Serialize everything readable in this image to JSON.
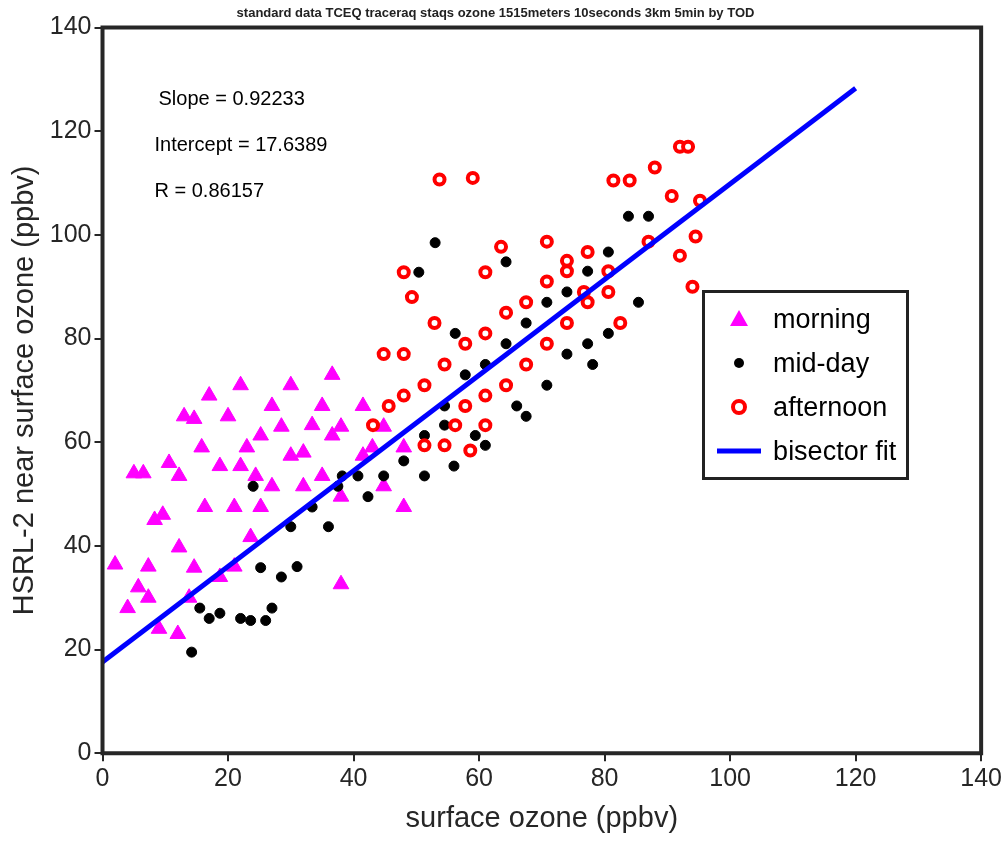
{
  "chart_data": {
    "type": "scatter",
    "title": "standard data TCEQ traceraq staqs ozone 1515meters 10seconds 3km 5min by TOD",
    "xlabel": "surface ozone (ppbv)",
    "ylabel": "HSRL-2 near surface ozone (ppbv)",
    "xlim": [
      0,
      140
    ],
    "ylim": [
      0,
      140
    ],
    "xticks": [
      0,
      20,
      40,
      60,
      80,
      100,
      120,
      140
    ],
    "yticks": [
      0,
      20,
      40,
      60,
      80,
      100,
      120,
      140
    ],
    "legend": "right",
    "annotations": [
      "Slope = 0.92233",
      "Intercept = 17.6389",
      "R = 0.86157"
    ],
    "series": [
      {
        "name": "morning",
        "color": "#ff00ff",
        "marker": "triangle",
        "x": [
          2,
          5,
          6.5,
          5.7,
          7.3,
          8.3,
          9.6,
          10.6,
          12.2,
          13,
          14.6,
          15.8,
          17,
          20,
          22,
          23,
          24.4,
          27,
          28.5,
          30,
          32,
          35,
          36.6,
          38,
          41.5,
          43,
          44.8,
          48,
          48,
          38,
          4,
          9,
          12,
          13.8,
          18.7,
          21,
          23.6,
          25.2,
          32,
          35,
          38,
          41.5,
          44.8,
          21,
          27,
          16.3,
          12.2,
          7.3,
          14.6,
          22,
          30,
          36.6,
          18.7,
          25.2,
          33.4
        ],
        "values": [
          36.4,
          54,
          54,
          32,
          36,
          45,
          46,
          56,
          53.5,
          65,
          64.5,
          59,
          69,
          65,
          71,
          59,
          53.5,
          67,
          63,
          71,
          58,
          67,
          73,
          63,
          67,
          59,
          51.5,
          47.5,
          59,
          32.6,
          28,
          24,
          23,
          30,
          34,
          36,
          41.7,
          47.5,
          51.5,
          53.5,
          49.5,
          57.4,
          63,
          47.5,
          51.5,
          47.5,
          39.7,
          30,
          35.8,
          55.4,
          57.4,
          61.3,
          55.4,
          61.3,
          63.3
        ]
      },
      {
        "name": "mid-day",
        "color": "#000000",
        "marker": "circle",
        "x": [
          14.2,
          15.5,
          17,
          18.7,
          22,
          23.6,
          26,
          27,
          28.5,
          31,
          30,
          25.2,
          24,
          33.4,
          36,
          37.5,
          38.2,
          40.7,
          42.3,
          44.8,
          48,
          51.3,
          54.5,
          57.8,
          61,
          64.3,
          67.5,
          70.8,
          74,
          77.3,
          80.6,
          83.8,
          87,
          53,
          50.4,
          56.2,
          64.3,
          61,
          56,
          54.5,
          66,
          70.8,
          74,
          77.3,
          85.4,
          80.6,
          78.1,
          67.5,
          59.4,
          51.3
        ],
        "values": [
          19.5,
          28,
          26,
          27,
          26,
          25.6,
          25.6,
          28,
          34,
          36,
          43.7,
          35.8,
          51.5,
          47.5,
          43.7,
          51.5,
          53.5,
          53.5,
          49.5,
          53.5,
          56.4,
          61.3,
          67,
          73,
          75,
          79,
          83,
          87,
          89,
          93,
          96.7,
          103.6,
          103.6,
          98.5,
          92.8,
          81,
          94.8,
          59.4,
          55.4,
          63.3,
          67,
          71,
          77,
          79,
          87,
          81,
          75,
          65,
          61.3,
          53.5
        ]
      },
      {
        "name": "afternoon",
        "color": "#ff0000",
        "marker": "circle",
        "x": [
          59,
          53.7,
          92,
          93.3,
          88,
          81.4,
          84,
          92,
          94.5,
          90.7,
          95.2,
          94,
          82.5,
          76.7,
          74,
          70.8,
          63.5,
          61,
          48,
          49.3,
          48,
          44.8,
          45.6,
          43.1,
          48,
          51.3,
          54.5,
          57.8,
          61,
          64.3,
          67.5,
          70.8,
          74,
          77.3,
          56.2,
          57.8,
          61,
          64.3,
          67.5,
          70.8,
          74,
          77.3,
          80.6,
          52.9,
          51.3,
          54.5,
          61,
          80.6,
          87,
          58.6
        ],
        "values": [
          111,
          110.7,
          117,
          117,
          113,
          110.5,
          110.5,
          96,
          99.7,
          107.5,
          106.6,
          90,
          83,
          89,
          93,
          98.7,
          97.7,
          92.8,
          92.8,
          88,
          77,
          77,
          67,
          63.3,
          69,
          71,
          75,
          79,
          81,
          85,
          87,
          91,
          95,
          96.7,
          63.3,
          67,
          69,
          71,
          75,
          79,
          83,
          87,
          89,
          83,
          59.4,
          59.4,
          63.3,
          93,
          98.7,
          58.4
        ]
      },
      {
        "name": "bisector fit",
        "type": "line",
        "color": "#0000ff",
        "marker": "none",
        "x": [
          0,
          120
        ],
        "values": [
          17.6,
          128.3
        ]
      }
    ]
  }
}
